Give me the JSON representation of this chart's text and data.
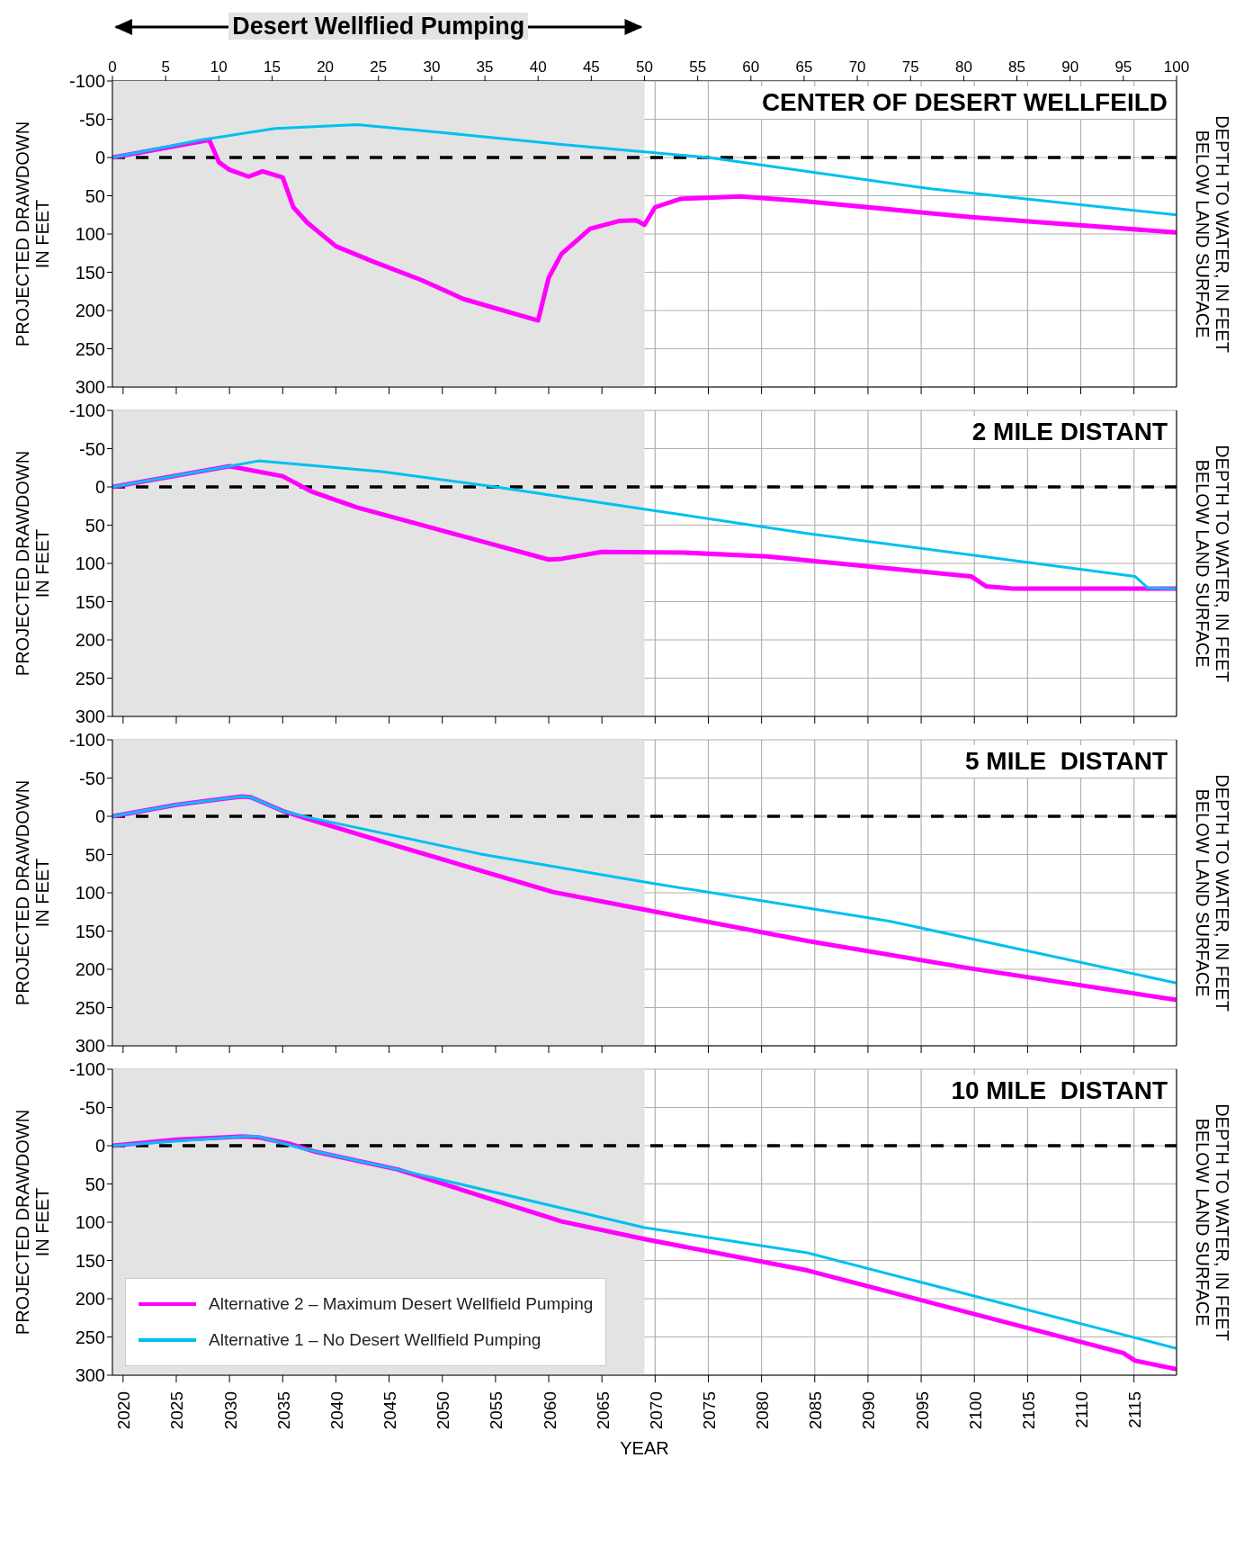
{
  "chart_data": [
    {
      "type": "line",
      "title": "CENTER OF DESERT WELLFEILD",
      "ylabel": "PROJECTED DRAWDOWN IN FEET",
      "y2label": "DEPTH TO WATER, IN FEET BELOW LAND SURFACE",
      "xlim": [
        2019,
        2119
      ],
      "xticks": [
        2020,
        2025,
        2030,
        2035,
        2040,
        2045,
        2050,
        2055,
        2060,
        2065,
        2070,
        2075,
        2080,
        2085,
        2090,
        2095,
        2100,
        2105,
        2110,
        2115
      ],
      "x2lim": [
        0,
        100
      ],
      "x2ticks": [
        0,
        5,
        10,
        15,
        20,
        25,
        30,
        35,
        40,
        45,
        50,
        55,
        60,
        65,
        70,
        75,
        80,
        85,
        90,
        95,
        100
      ],
      "ylim": [
        300,
        -100
      ],
      "yticks": [
        -100,
        -50,
        0,
        50,
        100,
        150,
        200,
        250,
        300
      ],
      "tick_labels": "y",
      "grid": true,
      "legend": false,
      "series": [
        {
          "color": "#ff00ff",
          "x": [
            2019,
            2028.1,
            2029,
            2030,
            2031.8,
            2033.1,
            2035,
            2036,
            2037.3,
            2040,
            2043.5,
            2048,
            2052,
            2059,
            2060,
            2061.2,
            2063.9,
            2066.6,
            2068.2,
            2069,
            2070,
            2072.4,
            2078,
            2084,
            2099.7,
            2119
          ],
          "values": [
            0,
            -23,
            6,
            16,
            25,
            18,
            26,
            65,
            85,
            116,
            136,
            160,
            185,
            213,
            157,
            126,
            93,
            83,
            82,
            88,
            65,
            54,
            51,
            57,
            78,
            98
          ]
        },
        {
          "color": "#00c0f0",
          "x": [
            2019,
            2027.3,
            2034.3,
            2042,
            2049.7,
            2061.2,
            2075,
            2095.9,
            2119
          ],
          "values": [
            0,
            -23,
            -38,
            -43,
            -33,
            -17,
            0,
            41,
            75
          ]
        }
      ],
      "ref_lines": [
        {
          "axis": "y",
          "value": 0,
          "color": "#000000",
          "line_style": "dashed"
        }
      ],
      "bands": [
        {
          "axis": "x",
          "from": 2019,
          "to": 2069,
          "label": "Desert Wellflied Pumping",
          "color": "#e3e3e3"
        }
      ]
    },
    {
      "type": "line",
      "title": "2 MILE DISTANT",
      "ylabel": "PROJECTED DRAWDOWN IN FEET",
      "y2label": "DEPTH TO WATER, IN FEET BELOW LAND SURFACE",
      "xlim": [
        2019,
        2119
      ],
      "xticks": [
        2020,
        2025,
        2030,
        2035,
        2040,
        2045,
        2050,
        2055,
        2060,
        2065,
        2070,
        2075,
        2080,
        2085,
        2090,
        2095,
        2100,
        2105,
        2110,
        2115
      ],
      "ylim": [
        300,
        -100
      ],
      "yticks": [
        -100,
        -50,
        0,
        50,
        100,
        150,
        200,
        250,
        300
      ],
      "tick_labels": "y",
      "grid": true,
      "legend": false,
      "series": [
        {
          "color": "#ff00ff",
          "x": [
            2019,
            2030,
            2035,
            2037.7,
            2042,
            2049.7,
            2060,
            2061.2,
            2065,
            2072.8,
            2080.5,
            2099.7,
            2101.1,
            2103.6,
            2119
          ],
          "values": [
            0,
            -27,
            -14,
            6,
            27,
            56,
            95,
            94,
            85,
            86,
            91,
            117,
            130,
            133,
            133
          ]
        },
        {
          "color": "#00c0f0",
          "x": [
            2019,
            2030,
            2032.7,
            2044.3,
            2055,
            2069,
            2084.3,
            2115.1,
            2116.3,
            2119
          ],
          "values": [
            0,
            -27,
            -34,
            -20,
            0,
            29,
            61,
            117,
            132,
            133
          ]
        }
      ],
      "ref_lines": [
        {
          "axis": "y",
          "value": 0,
          "color": "#000000",
          "line_style": "dashed"
        }
      ],
      "bands": [
        {
          "axis": "x",
          "from": 2019,
          "to": 2069,
          "color": "#e3e3e3"
        }
      ]
    },
    {
      "type": "line",
      "title": "5 MILE  DISTANT",
      "ylabel": "PROJECTED DRAWDOWN IN FEET",
      "y2label": "DEPTH TO WATER, IN FEET BELOW LAND SURFACE",
      "xlim": [
        2019,
        2119
      ],
      "xticks": [
        2020,
        2025,
        2030,
        2035,
        2040,
        2045,
        2050,
        2055,
        2060,
        2065,
        2070,
        2075,
        2080,
        2085,
        2090,
        2095,
        2100,
        2105,
        2110,
        2115
      ],
      "ylim": [
        300,
        -100
      ],
      "yticks": [
        -100,
        -50,
        0,
        50,
        100,
        150,
        200,
        250,
        300
      ],
      "tick_labels": "y",
      "grid": true,
      "legend": false,
      "series": [
        {
          "color": "#ff00ff",
          "x": [
            2019,
            2025,
            2031.2,
            2032,
            2035,
            2037,
            2045.8,
            2060.4,
            2069,
            2084.3,
            2099.7,
            2119
          ],
          "values": [
            0,
            -15,
            -26,
            -25,
            -7,
            2,
            39,
            99,
            122,
            163,
            199,
            240
          ]
        },
        {
          "color": "#00c0f0",
          "x": [
            2019,
            2025,
            2031.2,
            2032,
            2035,
            2037.3,
            2053.5,
            2069,
            2092,
            2119
          ],
          "values": [
            0,
            -15,
            -26,
            -25,
            -7,
            1,
            49,
            86,
            137,
            218
          ]
        }
      ],
      "ref_lines": [
        {
          "axis": "y",
          "value": 0,
          "color": "#000000",
          "line_style": "dashed"
        }
      ],
      "bands": [
        {
          "axis": "x",
          "from": 2019,
          "to": 2069,
          "color": "#e3e3e3"
        }
      ]
    },
    {
      "type": "line",
      "title": "10 MILE  DISTANT",
      "xlabel": "YEAR",
      "ylabel": "PROJECTED DRAWDOWN IN FEET",
      "y2label": "DEPTH TO WATER, IN FEET BELOW LAND SURFACE",
      "xlim": [
        2019,
        2119
      ],
      "xticks": [
        2020,
        2025,
        2030,
        2035,
        2040,
        2045,
        2050,
        2055,
        2060,
        2065,
        2070,
        2075,
        2080,
        2085,
        2090,
        2095,
        2100,
        2105,
        2110,
        2115
      ],
      "ylim": [
        300,
        -100
      ],
      "yticks": [
        -100,
        -50,
        0,
        50,
        100,
        150,
        200,
        250,
        300
      ],
      "grid": true,
      "legend": "bottom left",
      "series": [
        {
          "name": "Alternative 2 – Maximum Desert Wellfield Pumping",
          "color": "#ff00ff",
          "x": [
            2019,
            2025,
            2031.2,
            2032.7,
            2035.8,
            2038.1,
            2045.8,
            2061.2,
            2069,
            2084.3,
            2114,
            2115.1,
            2119
          ],
          "values": [
            0,
            -8,
            -12,
            -11,
            -2,
            8,
            31,
            99,
            122,
            163,
            271,
            281,
            292
          ]
        },
        {
          "name": "Alternative 1 – No Desert Wellfield Pumping",
          "color": "#00c0f0",
          "x": [
            2019,
            2031.2,
            2032.7,
            2036.6,
            2045.8,
            2069,
            2084.3,
            2119
          ],
          "values": [
            0,
            -12,
            -12,
            3,
            31,
            107,
            140,
            265
          ]
        }
      ],
      "ref_lines": [
        {
          "axis": "y",
          "value": 0,
          "color": "#000000",
          "line_style": "dashed"
        }
      ],
      "bands": [
        {
          "axis": "x",
          "from": 2019,
          "to": 2069,
          "color": "#e3e3e3"
        }
      ]
    }
  ]
}
